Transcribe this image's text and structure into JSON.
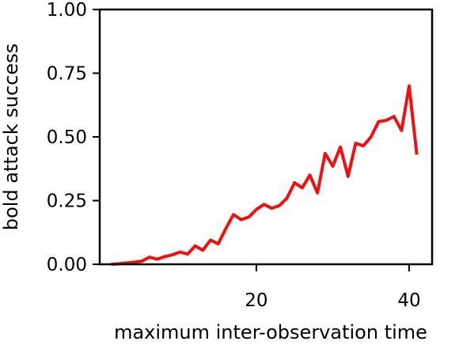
{
  "chart_data": {
    "type": "line",
    "title": "",
    "xlabel": "maximum inter-observation time",
    "ylabel": "bold attack success",
    "xlim": [
      -0.5,
      43
    ],
    "ylim": [
      0,
      1
    ],
    "x_ticks": [
      {
        "value": 20,
        "label": "20"
      },
      {
        "value": 40,
        "label": "40"
      }
    ],
    "y_ticks": [
      {
        "value": 0.0,
        "label": "0.00"
      },
      {
        "value": 0.25,
        "label": "0.25"
      },
      {
        "value": 0.5,
        "label": "0.50"
      },
      {
        "value": 0.75,
        "label": "0.75"
      },
      {
        "value": 1.0,
        "label": "1.00"
      }
    ],
    "grid": false,
    "series": [
      {
        "color": "#ee1111",
        "x": [
          1,
          2,
          3,
          4,
          5,
          6,
          7,
          8,
          9,
          10,
          11,
          12,
          13,
          14,
          15,
          16,
          17,
          18,
          19,
          20,
          21,
          22,
          23,
          24,
          25,
          26,
          27,
          28,
          29,
          30,
          31,
          32,
          33,
          34,
          35,
          36,
          37,
          38,
          39,
          40,
          41
        ],
        "y": [
          0.0,
          0.002,
          0.005,
          0.008,
          0.012,
          0.028,
          0.02,
          0.03,
          0.037,
          0.048,
          0.04,
          0.072,
          0.055,
          0.095,
          0.08,
          0.14,
          0.195,
          0.175,
          0.185,
          0.215,
          0.235,
          0.22,
          0.23,
          0.26,
          0.32,
          0.3,
          0.35,
          0.28,
          0.435,
          0.385,
          0.46,
          0.345,
          0.475,
          0.465,
          0.5,
          0.56,
          0.565,
          0.58,
          0.525,
          0.7,
          0.43
        ]
      }
    ]
  }
}
